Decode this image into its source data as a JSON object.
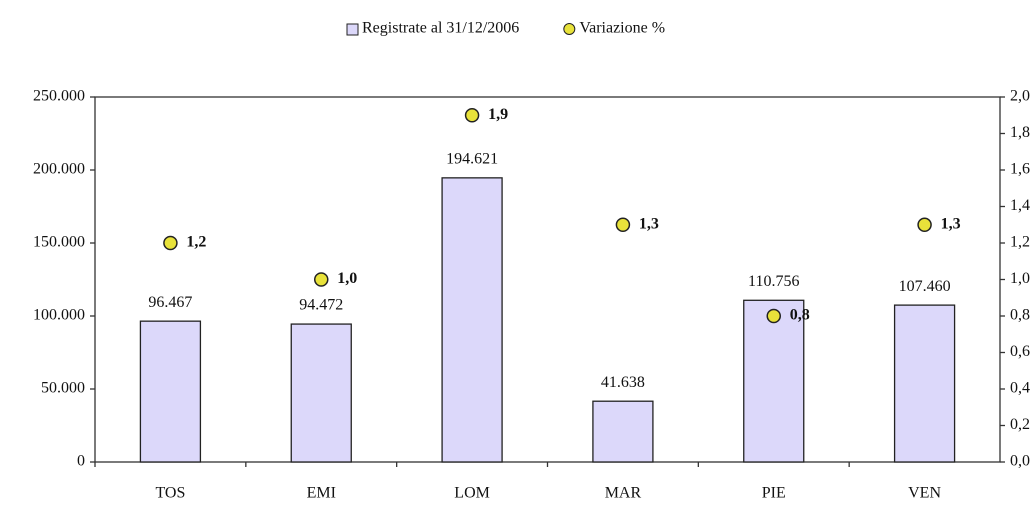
{
  "chart_data": {
    "type": "bar",
    "categories": [
      "TOS",
      "EMI",
      "LOM",
      "MAR",
      "PIE",
      "VEN"
    ],
    "series": [
      {
        "name": "Registrate al 31/12/2006",
        "type": "bar",
        "color": "#dcd8fa",
        "values": [
          96467,
          94472,
          194621,
          41638,
          110756,
          107460
        ],
        "value_labels": [
          "96.467",
          "94.472",
          "194.621",
          "41.638",
          "110.756",
          "107.460"
        ]
      },
      {
        "name": "Variazione %",
        "type": "scatter",
        "axis": "y2",
        "color": "#e8e23a",
        "values": [
          1.2,
          1.0,
          1.9,
          1.3,
          0.8,
          1.3
        ],
        "value_labels": [
          "1,2",
          "1,0",
          "1,9",
          "1,3",
          "0,8",
          "1,3"
        ]
      }
    ],
    "ylim": [
      0,
      250000
    ],
    "yticks": [
      0,
      {
        "value": 50000,
        "label": "50.000"
      },
      {
        "value": 100000,
        "label": "100.000"
      },
      {
        "value": 150000,
        "label": "150.000"
      },
      {
        "value": 200000,
        "label": "200.000"
      },
      {
        "value": 250000,
        "label": "250.000"
      }
    ],
    "y2lim": [
      0,
      2
    ],
    "y2ticks": [
      {
        "value": 0,
        "label": "0,0"
      },
      {
        "value": 0.2,
        "label": "0,2"
      },
      {
        "value": 0.4,
        "label": "0,4"
      },
      {
        "value": 0.6,
        "label": "0,6"
      },
      {
        "value": 0.8,
        "label": "0,8"
      },
      {
        "value": 1.0,
        "label": "1,0"
      },
      {
        "value": 1.2,
        "label": "1,2"
      },
      {
        "value": 1.4,
        "label": "1,4"
      },
      {
        "value": 1.6,
        "label": "1,6"
      },
      {
        "value": 1.8,
        "label": "1,8"
      },
      {
        "value": 2.0,
        "label": "2,0"
      }
    ],
    "legend": "top"
  }
}
